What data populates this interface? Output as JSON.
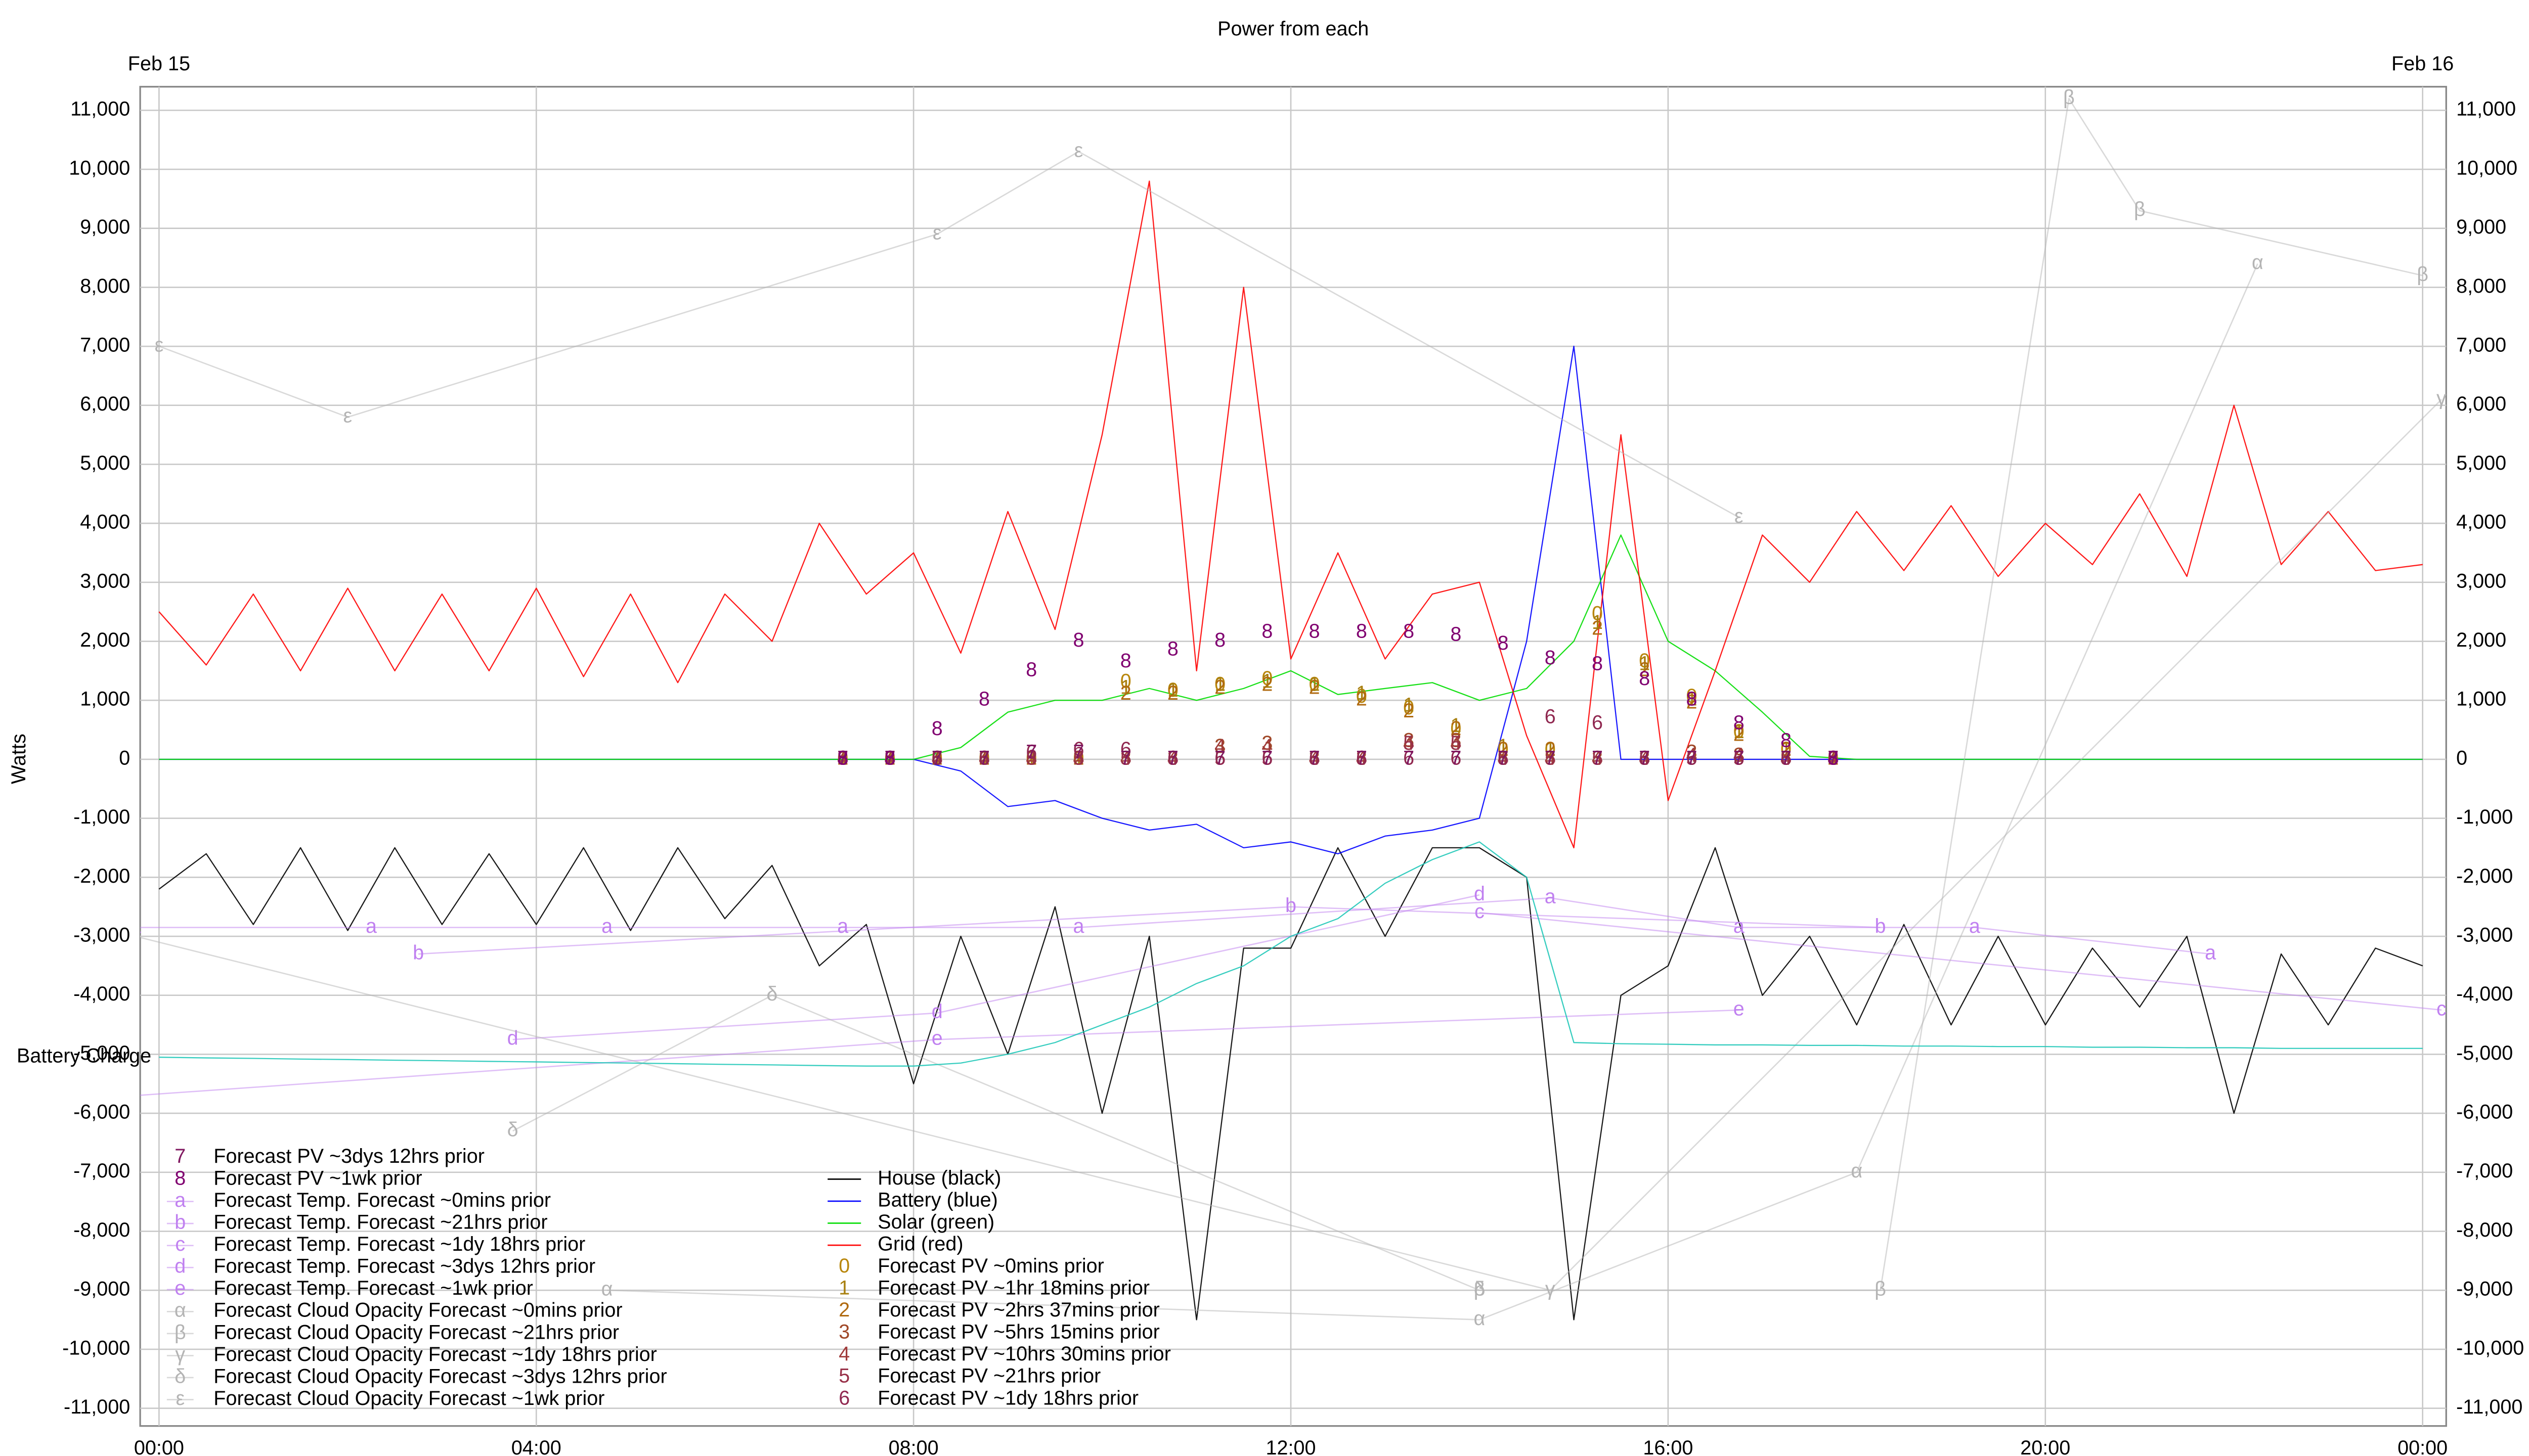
{
  "chart_data": {
    "type": "line",
    "title": "Power from each",
    "y_label": "Watts",
    "top_labels": [
      {
        "value": 0,
        "label": "Feb 15"
      },
      {
        "value": 24,
        "label": "Feb 16"
      }
    ],
    "xlim": [
      -0.2,
      24.25
    ],
    "xticks": [
      {
        "value": 0,
        "label": "00:00"
      },
      {
        "value": 4,
        "label": "04:00"
      },
      {
        "value": 8,
        "label": "08:00"
      },
      {
        "value": 12,
        "label": "12:00"
      },
      {
        "value": 16,
        "label": "16:00"
      },
      {
        "value": 20,
        "label": "20:00"
      },
      {
        "value": 24,
        "label": "00:00"
      }
    ],
    "ylim": [
      -11300,
      11400
    ],
    "yticks": [
      {
        "value": -11000,
        "label": "-11,000"
      },
      {
        "value": -10000,
        "label": "-10,000"
      },
      {
        "value": -9000,
        "label": "-9,000"
      },
      {
        "value": -8000,
        "label": "-8,000"
      },
      {
        "value": -7000,
        "label": "-7,000"
      },
      {
        "value": -6000,
        "label": "-6,000"
      },
      {
        "value": -5000,
        "label": "-5,000"
      },
      {
        "value": -4000,
        "label": "-4,000"
      },
      {
        "value": -3000,
        "label": "-3,000"
      },
      {
        "value": -2000,
        "label": "-2,000"
      },
      {
        "value": -1000,
        "label": "-1,000"
      },
      0,
      {
        "value": 1000,
        "label": "1,000"
      },
      {
        "value": 2000,
        "label": "2,000"
      },
      {
        "value": 3000,
        "label": "3,000"
      },
      {
        "value": 4000,
        "label": "4,000"
      },
      {
        "value": 5000,
        "label": "5,000"
      },
      {
        "value": 6000,
        "label": "6,000"
      },
      {
        "value": 7000,
        "label": "7,000"
      },
      {
        "value": 8000,
        "label": "8,000"
      },
      {
        "value": 9000,
        "label": "9,000"
      },
      {
        "value": 10000,
        "label": "10,000"
      },
      {
        "value": 11000,
        "label": "11,000"
      }
    ],
    "grid": true,
    "right_axis": true,
    "x": [
      0,
      0.5,
      1,
      1.5,
      2,
      2.5,
      3,
      3.5,
      4,
      4.5,
      5,
      5.5,
      6,
      6.5,
      7,
      7.5,
      8,
      8.5,
      9,
      9.5,
      10,
      10.5,
      11,
      11.5,
      12,
      12.5,
      13,
      13.5,
      14,
      14.5,
      15,
      15.5,
      16,
      16.5,
      17,
      17.5,
      18,
      18.5,
      19,
      19.5,
      20,
      20.5,
      21,
      21.5,
      22,
      22.5,
      23,
      23.5,
      24
    ],
    "series": [
      {
        "name": "House (black)",
        "color": "#000000",
        "values": [
          -2200,
          -1600,
          -2800,
          -1500,
          -2900,
          -1500,
          -2800,
          -1600,
          -2800,
          -1500,
          -2900,
          -1500,
          -2700,
          -1800,
          -3500,
          -2800,
          -5500,
          -3000,
          -5000,
          -2500,
          -6000,
          -3000,
          -9500,
          -3200,
          -3200,
          -1500,
          -3000,
          -1500,
          -1500,
          -2000,
          -9500,
          -4000,
          -3500,
          -1500,
          -4000,
          -3000,
          -4500,
          -2800,
          -4500,
          -3000,
          -4500,
          -3200,
          -4200,
          -3000,
          -6000,
          -3300,
          -4500,
          -3200,
          -3500
        ]
      },
      {
        "name": "Battery (blue)",
        "color": "#0000ff",
        "values": [
          0,
          0,
          0,
          0,
          0,
          0,
          0,
          0,
          0,
          0,
          0,
          0,
          0,
          0,
          0,
          0,
          0,
          -200,
          -800,
          -700,
          -1000,
          -1200,
          -1100,
          -1500,
          -1400,
          -1600,
          -1300,
          -1200,
          -1000,
          2000,
          7000,
          0,
          0,
          0,
          0,
          0,
          0,
          0,
          0,
          0,
          0,
          0,
          0,
          0,
          0,
          0,
          0,
          0,
          0
        ]
      },
      {
        "name": "Solar (green)",
        "color": "#00dd00",
        "values": [
          0,
          0,
          0,
          0,
          0,
          0,
          0,
          0,
          0,
          0,
          0,
          0,
          0,
          0,
          0,
          0,
          0,
          200,
          800,
          1000,
          1000,
          1200,
          1000,
          1200,
          1500,
          1100,
          1200,
          1300,
          1000,
          1200,
          2000,
          3800,
          2000,
          1500,
          800,
          50,
          0,
          0,
          0,
          0,
          0,
          0,
          0,
          0,
          0,
          0,
          0,
          0,
          0
        ]
      },
      {
        "name": "Grid (red)",
        "color": "#ff0000",
        "values": [
          2500,
          1600,
          2800,
          1500,
          2900,
          1500,
          2800,
          1500,
          2900,
          1400,
          2800,
          1300,
          2800,
          2000,
          4000,
          2800,
          3500,
          1800,
          4200,
          2200,
          5500,
          9800,
          1500,
          8000,
          1700,
          3500,
          1700,
          2800,
          3000,
          400,
          -1500,
          5500,
          -700,
          1500,
          3800,
          3000,
          4200,
          3200,
          4300,
          3100,
          4000,
          3300,
          4500,
          3100,
          6000,
          3300,
          4200,
          3200,
          3300
        ]
      },
      {
        "name": "Forecast PV ~0mins prior",
        "marker": "0",
        "line": false,
        "color": "#b8860b",
        "x": [
          7.25,
          7.75,
          8.25,
          8.75,
          9.25,
          9.75,
          10.25,
          10.75,
          11.25,
          11.75,
          12.25,
          12.75,
          13.25,
          13.75,
          14.25,
          14.75,
          15.25,
          15.75,
          16.25,
          16.75,
          17.25,
          17.75
        ],
        "values": [
          0,
          0,
          0,
          0,
          0,
          0,
          1300,
          1150,
          1250,
          1350,
          1250,
          1050,
          850,
          500,
          150,
          150,
          2450,
          1650,
          1050,
          450,
          150,
          0
        ]
      },
      {
        "name": "Forecast PV ~1hr 18mins prior",
        "marker": "1",
        "line": false,
        "color": "#a88010",
        "x": [
          7.25,
          7.75,
          8.25,
          8.75,
          9.25,
          9.75,
          10.25,
          10.75,
          11.25,
          11.75,
          12.25,
          12.75,
          13.25,
          13.75,
          14.25,
          14.75,
          15.25,
          15.75,
          16.25,
          16.75,
          17.25,
          17.75
        ],
        "values": [
          0,
          0,
          0,
          0,
          0,
          0,
          1200,
          1150,
          1250,
          1300,
          1250,
          1100,
          900,
          550,
          200,
          150,
          2300,
          1600,
          1000,
          450,
          150,
          0
        ]
      },
      {
        "name": "Forecast PV ~2hrs 37mins prior",
        "marker": "2",
        "line": false,
        "color": "#b06a10",
        "x": [
          7.25,
          7.75,
          8.25,
          8.75,
          9.25,
          9.75,
          10.25,
          10.75,
          11.25,
          11.75,
          12.25,
          12.75,
          13.25,
          13.75,
          14.25,
          14.75,
          15.25,
          15.75,
          16.25,
          16.75,
          17.25,
          17.75
        ],
        "values": [
          0,
          0,
          0,
          0,
          0,
          0,
          1100,
          1100,
          1200,
          1250,
          1200,
          1000,
          800,
          500,
          150,
          150,
          2200,
          1500,
          950,
          400,
          150,
          0
        ]
      },
      {
        "name": "Forecast PV ~5hrs 15mins prior",
        "marker": "3",
        "line": false,
        "color": "#a04828",
        "x": [
          7.25,
          7.75,
          8.25,
          8.75,
          9.25,
          9.75,
          10.25,
          10.75,
          11.25,
          11.75,
          12.25,
          12.75,
          13.25,
          13.75,
          14.25,
          14.75,
          15.25,
          15.75,
          16.25,
          16.75,
          17.25,
          17.75
        ],
        "values": [
          0,
          0,
          0,
          0,
          0,
          0,
          0,
          0,
          200,
          250,
          0,
          0,
          300,
          300,
          0,
          0,
          0,
          0,
          100,
          50,
          0,
          0
        ]
      },
      {
        "name": "Forecast PV ~10hrs 30mins prior",
        "marker": "4",
        "line": false,
        "color": "#a03a3a",
        "x": [
          7.25,
          7.75,
          8.25,
          8.75,
          9.25,
          9.75,
          10.25,
          10.75,
          11.25,
          11.75,
          12.25,
          12.75,
          13.25,
          13.75,
          14.25,
          14.75,
          15.25,
          15.75,
          16.25,
          16.75,
          17.25,
          17.75
        ],
        "values": [
          0,
          0,
          0,
          0,
          0,
          0,
          0,
          0,
          200,
          200,
          0,
          0,
          250,
          250,
          0,
          0,
          0,
          0,
          50,
          50,
          0,
          0
        ]
      },
      {
        "name": "Forecast PV ~21hrs prior",
        "marker": "5",
        "line": false,
        "color": "#983048",
        "x": [
          7.25,
          7.75,
          8.25,
          8.75,
          9.25,
          9.75,
          10.25,
          10.75,
          11.25,
          11.75,
          12.25,
          12.75,
          13.25,
          13.75,
          14.25,
          14.75,
          15.25,
          15.75,
          16.25,
          16.75,
          17.25,
          17.75
        ],
        "values": [
          0,
          0,
          0,
          0,
          0,
          0,
          0,
          0,
          0,
          0,
          0,
          0,
          250,
          250,
          0,
          0,
          0,
          0,
          0,
          0,
          0,
          0
        ]
      },
      {
        "name": "Forecast PV ~1dy 18hrs prior",
        "marker": "6",
        "line": false,
        "color": "#902850",
        "x": [
          7.25,
          7.75,
          8.25,
          8.75,
          9.25,
          9.75,
          10.25,
          10.75,
          11.25,
          11.75,
          12.25,
          12.75,
          13.25,
          13.75,
          14.25,
          14.75,
          15.25,
          15.75,
          16.25,
          16.75,
          17.25,
          17.75
        ],
        "values": [
          0,
          0,
          0,
          0,
          100,
          150,
          150,
          0,
          0,
          0,
          0,
          0,
          0,
          0,
          0,
          700,
          600,
          0,
          0,
          0,
          0,
          0
        ]
      },
      {
        "name": "Forecast PV ~3dys 12hrs prior",
        "marker": "7",
        "line": false,
        "color": "#801860",
        "x": [
          7.25,
          7.75,
          8.25,
          8.75,
          9.25,
          9.75,
          10.25,
          10.75,
          11.25,
          11.75,
          12.25,
          12.75,
          13.25,
          13.75,
          14.25,
          14.75,
          15.25,
          15.75,
          16.25,
          16.75,
          17.25,
          17.75
        ],
        "values": [
          0,
          0,
          0,
          0,
          100,
          100,
          0,
          0,
          0,
          0,
          0,
          0,
          0,
          0,
          0,
          0,
          0,
          0,
          0,
          0,
          0,
          0
        ]
      },
      {
        "name": "Forecast PV ~1wk prior",
        "marker": "8",
        "line": false,
        "color": "#800070",
        "x": [
          7.25,
          7.75,
          8.25,
          8.75,
          9.25,
          9.75,
          10.25,
          10.75,
          11.25,
          11.75,
          12.25,
          12.75,
          13.25,
          13.75,
          14.25,
          14.75,
          15.25,
          15.75,
          16.25,
          16.75,
          17.25,
          17.75
        ],
        "values": [
          0,
          0,
          500,
          1000,
          1500,
          2000,
          1650,
          1850,
          2000,
          2150,
          2150,
          2150,
          2150,
          2100,
          1950,
          1700,
          1600,
          1350,
          1000,
          600,
          300,
          0
        ]
      },
      {
        "name": "Forecast Temp. Forecast ~0mins prior",
        "marker": "a",
        "line": true,
        "color": "#c080f0",
        "x": [
          -0.25,
          2.25,
          4.75,
          7.25,
          9.75,
          14.75,
          16.75,
          19.25,
          21.75
        ],
        "values": [
          -2850,
          -2850,
          -2850,
          -2850,
          -2850,
          -2350,
          -2850,
          -2850,
          -3300
        ]
      },
      {
        "name": "Forecast Temp. Forecast ~21hrs prior",
        "marker": "b",
        "line": true,
        "color": "#c080f0",
        "x": [
          2.75,
          12,
          18.25
        ],
        "values": [
          -3300,
          -2500,
          -2850
        ]
      },
      {
        "name": "Forecast Temp. Forecast ~1dy 18hrs prior",
        "marker": "c",
        "line": true,
        "color": "#c080f0",
        "x": [
          14,
          24.2
        ],
        "values": [
          -2600,
          -4250
        ]
      },
      {
        "name": "Forecast Temp. Forecast ~3dys 12hrs prior",
        "marker": "d",
        "line": true,
        "color": "#c080f0",
        "x": [
          3.75,
          8.25,
          14
        ],
        "values": [
          -4750,
          -4300,
          -2300
        ]
      },
      {
        "name": "Forecast Temp. Forecast ~1wk prior",
        "marker": "e",
        "line": true,
        "color": "#c080f0",
        "x": [
          -0.25,
          8.25,
          16.75
        ],
        "values": [
          -5700,
          -4750,
          -4250
        ]
      },
      {
        "name": "Forecast Cloud Opacity Forecast ~0mins prior",
        "marker": "α",
        "line": true,
        "color": "#b4b4b4",
        "x": [
          4.75,
          14,
          18,
          22.25
        ],
        "values": [
          -9000,
          -9500,
          -7000,
          8400
        ]
      },
      {
        "name": "Forecast Cloud Opacity Forecast ~21hrs prior",
        "marker": "β",
        "line": true,
        "color": "#b4b4b4",
        "x": [
          14,
          18.25,
          20.25,
          21,
          24
        ],
        "values": [
          -9000,
          -9000,
          11200,
          9300,
          8200
        ]
      },
      {
        "name": "Forecast Cloud Opacity Forecast ~1dy 18hrs prior",
        "marker": "γ",
        "line": true,
        "color": "#b4b4b4",
        "x": [
          -0.25,
          14.75,
          24.2
        ],
        "values": [
          -3000,
          -9000,
          6100
        ]
      },
      {
        "name": "Forecast Cloud Opacity Forecast ~3dys 12hrs prior",
        "marker": "δ",
        "line": true,
        "color": "#b4b4b4",
        "x": [
          3.75,
          6.5,
          14
        ],
        "values": [
          -6300,
          -4000,
          -9000
        ]
      },
      {
        "name": "Forecast Cloud Opacity Forecast ~1wk prior",
        "marker": "ε",
        "line": true,
        "color": "#b4b4b4",
        "x": [
          0,
          2,
          8.25,
          9.75,
          16.75
        ],
        "values": [
          7000,
          5800,
          8900,
          10300,
          4100
        ]
      },
      {
        "name": "Battery Charge",
        "color": "#20c8b8",
        "legend": false,
        "values": [
          -5050,
          -5060,
          -5070,
          -5080,
          -5090,
          -5100,
          -5110,
          -5120,
          -5130,
          -5140,
          -5150,
          -5160,
          -5170,
          -5180,
          -5190,
          -5200,
          -5200,
          -5150,
          -5000,
          -4800,
          -4500,
          -4200,
          -3800,
          -3500,
          -3000,
          -2700,
          -2100,
          -1700,
          -1400,
          -2000,
          -4800,
          -4820,
          -4830,
          -4840,
          -4840,
          -4850,
          -4850,
          -4860,
          -4860,
          -4870,
          -4870,
          -4880,
          -4880,
          -4890,
          -4890,
          -4900,
          -4900,
          -4900,
          -4900
        ]
      }
    ]
  }
}
